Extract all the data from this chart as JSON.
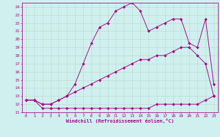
{
  "xlabel": "Windchill (Refroidissement éolien,°C)",
  "background_color": "#cff0ee",
  "line_color": "#aa0088",
  "grid_color": "#bbddcc",
  "xmin": 0,
  "xmax": 23,
  "ymin": 11,
  "ymax": 24,
  "series1_x": [
    0,
    1,
    2,
    3,
    4,
    5,
    6,
    7,
    8,
    9,
    10,
    11,
    12,
    13,
    14,
    15,
    16,
    17,
    18,
    19,
    20,
    21,
    22,
    23
  ],
  "series1_y": [
    12.5,
    12.5,
    11.5,
    11.5,
    11.5,
    11.5,
    11.5,
    11.5,
    11.5,
    11.5,
    11.5,
    11.5,
    11.5,
    11.5,
    11.5,
    11.5,
    12.0,
    12.0,
    12.0,
    12.0,
    12.0,
    12.0,
    12.5,
    13.0
  ],
  "series2_x": [
    0,
    1,
    2,
    3,
    4,
    5,
    6,
    7,
    8,
    9,
    10,
    11,
    12,
    13,
    14,
    15,
    16,
    17,
    18,
    19,
    20,
    21,
    22,
    23
  ],
  "series2_y": [
    12.5,
    12.5,
    12.0,
    12.0,
    12.5,
    13.0,
    13.5,
    14.0,
    14.5,
    15.0,
    15.5,
    16.0,
    16.5,
    17.0,
    17.5,
    17.5,
    18.0,
    18.0,
    18.5,
    19.0,
    19.0,
    18.0,
    17.0,
    13.0
  ],
  "series3_x": [
    0,
    1,
    2,
    3,
    4,
    5,
    6,
    7,
    8,
    9,
    10,
    11,
    12,
    13,
    14,
    15,
    16,
    17,
    18,
    19,
    20,
    21,
    22,
    23
  ],
  "series3_y": [
    12.5,
    12.5,
    12.0,
    12.0,
    12.5,
    13.0,
    14.5,
    17.0,
    19.5,
    21.5,
    22.0,
    23.5,
    24.0,
    24.5,
    23.5,
    21.0,
    21.5,
    22.0,
    22.5,
    22.5,
    19.5,
    19.0,
    22.5,
    14.5
  ]
}
